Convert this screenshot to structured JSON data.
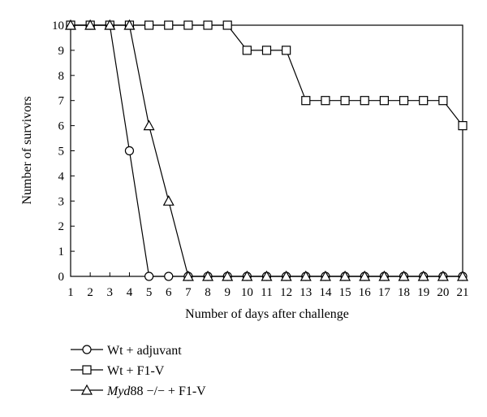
{
  "chart_data": {
    "type": "line",
    "title": "",
    "xlabel": "Number of days after challenge",
    "ylabel": "Number of survivors",
    "xlim": [
      1,
      21
    ],
    "ylim": [
      0,
      10
    ],
    "x_ticks": [
      "1",
      "2",
      "3",
      "4",
      "5",
      "6",
      "7",
      "8",
      "9",
      "10",
      "11",
      "12",
      "13",
      "14",
      "15",
      "16",
      "17",
      "18",
      "19",
      "20",
      "21"
    ],
    "y_ticks": [
      "0",
      "1",
      "2",
      "3",
      "4",
      "5",
      "6",
      "7",
      "8",
      "9",
      "10"
    ],
    "grid": false,
    "legend_position": "bottom-left",
    "series": [
      {
        "name": "Wt + adjuvant",
        "marker": "circle",
        "x": [
          1,
          2,
          3,
          4,
          5,
          6,
          7,
          8,
          9,
          10,
          11,
          12,
          13,
          14,
          15,
          16,
          17,
          18,
          19,
          20,
          21
        ],
        "y": [
          10,
          10,
          10,
          5,
          0,
          0,
          0,
          0,
          0,
          0,
          0,
          0,
          0,
          0,
          0,
          0,
          0,
          0,
          0,
          0,
          0
        ]
      },
      {
        "name": "Wt + F1-V",
        "marker": "square",
        "x": [
          1,
          2,
          3,
          4,
          5,
          6,
          7,
          8,
          9,
          10,
          11,
          12,
          13,
          14,
          15,
          16,
          17,
          18,
          19,
          20,
          21
        ],
        "y": [
          10,
          10,
          10,
          10,
          10,
          10,
          10,
          10,
          10,
          9,
          9,
          9,
          7,
          7,
          7,
          7,
          7,
          7,
          7,
          7,
          6
        ]
      },
      {
        "name": "Myd88 −/− + F1-V",
        "name_italic_part": "Myd",
        "name_rest": "88 −/− + F1-V",
        "marker": "triangle",
        "x": [
          1,
          2,
          3,
          4,
          5,
          6,
          7,
          8,
          9,
          10,
          11,
          12,
          13,
          14,
          15,
          16,
          17,
          18,
          19,
          20,
          21
        ],
        "y": [
          10,
          10,
          10,
          10,
          6,
          3,
          0,
          0,
          0,
          0,
          0,
          0,
          0,
          0,
          0,
          0,
          0,
          0,
          0,
          0,
          0
        ]
      }
    ]
  }
}
